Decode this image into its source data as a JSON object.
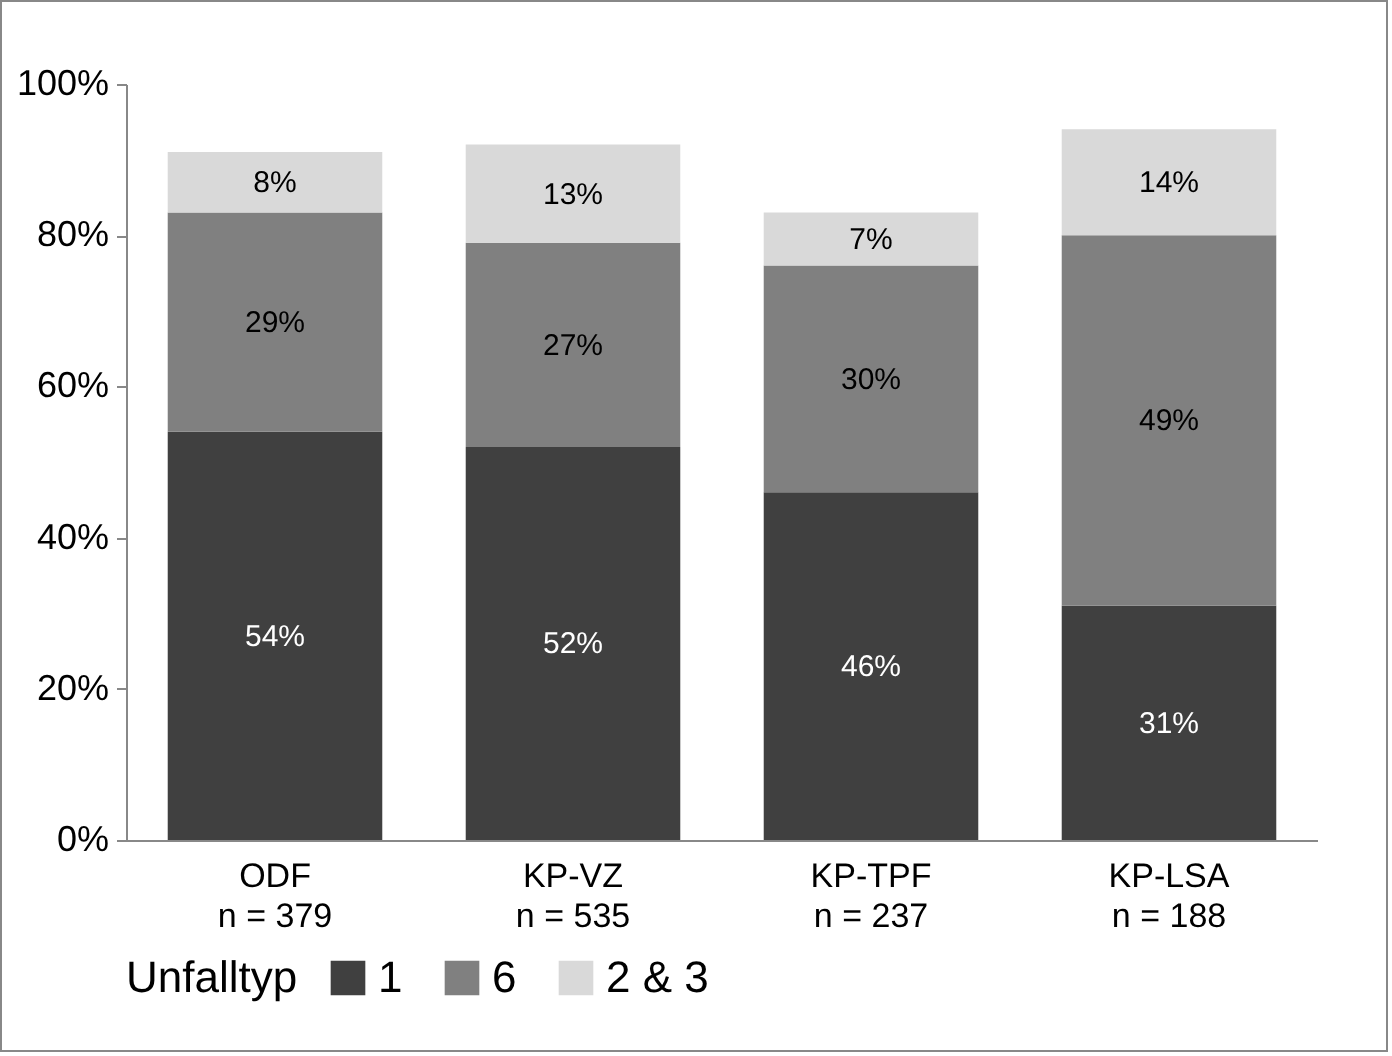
{
  "chart_data": {
    "type": "bar",
    "stacked": true,
    "categories": [
      "ODF\nn = 379",
      "KP-VZ\nn = 535",
      "KP-TPF\nn = 237",
      "KP-LSA\nn = 188"
    ],
    "series": [
      {
        "name": "1",
        "color": "#404040",
        "values": [
          54,
          52,
          46,
          31
        ],
        "value_labels": [
          "54%",
          "52%",
          "46%",
          "31%"
        ]
      },
      {
        "name": "6",
        "color": "#808080",
        "values": [
          29,
          27,
          30,
          49
        ],
        "value_labels": [
          "29%",
          "27%",
          "30%",
          "49%"
        ]
      },
      {
        "name": "2 & 3",
        "color": "#d9d9d9",
        "values": [
          8,
          13,
          7,
          14
        ],
        "value_labels": [
          "8%",
          "13%",
          "7%",
          "14%"
        ]
      }
    ],
    "ylim": [
      0,
      100
    ],
    "yticks": [
      {
        "value": 0,
        "label": "0%"
      },
      {
        "value": 20,
        "label": "20%"
      },
      {
        "value": 40,
        "label": "40%"
      },
      {
        "value": 60,
        "label": "60%"
      },
      {
        "value": 80,
        "label": "80%"
      },
      {
        "value": 100,
        "label": "100%"
      }
    ],
    "legend_title": "Unfalltyp",
    "legend": "bottom",
    "grid": false
  }
}
